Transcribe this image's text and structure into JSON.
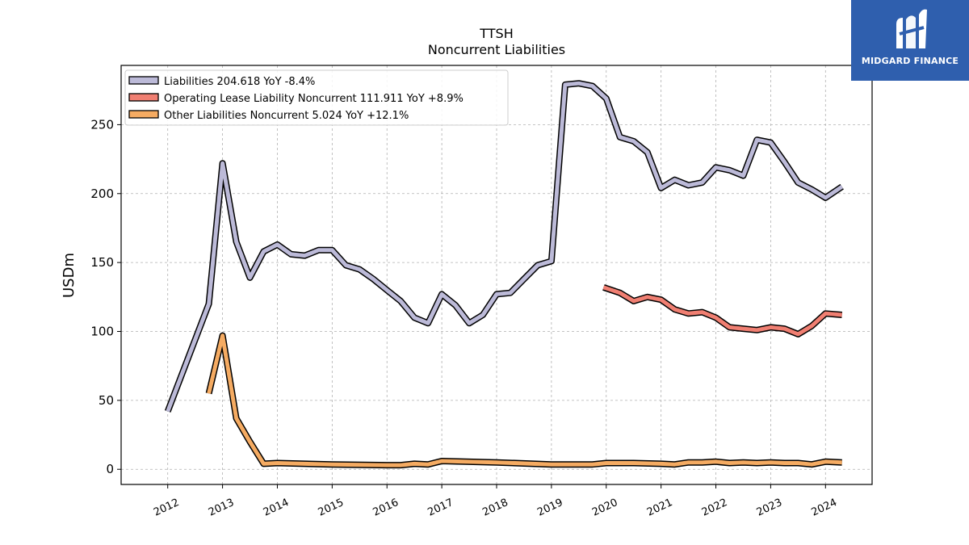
{
  "chart_data": {
    "type": "line",
    "title": "TTSH",
    "subtitle": "Noncurrent  Liabilities",
    "ylabel": "USDm",
    "xlabel": "",
    "ylim": [
      -11,
      293
    ],
    "yticks": [
      0,
      50,
      100,
      150,
      200,
      250
    ],
    "xlim": [
      2011.15,
      2024.85
    ],
    "xticks": [
      2012,
      2013,
      2014,
      2015,
      2016,
      2017,
      2018,
      2019,
      2020,
      2021,
      2022,
      2023,
      2024
    ],
    "grid": true,
    "legend_position": "top-left",
    "series": [
      {
        "name": "Liabilities",
        "legend": "Liabilities  204.618 YoY -8.4%",
        "color": "#bcbad8",
        "points": [
          [
            2012.0,
            42
          ],
          [
            2012.75,
            120
          ],
          [
            2013.0,
            222
          ],
          [
            2013.25,
            165
          ],
          [
            2013.5,
            139
          ],
          [
            2013.75,
            158
          ],
          [
            2014.0,
            163
          ],
          [
            2014.25,
            156
          ],
          [
            2014.5,
            155
          ],
          [
            2014.75,
            159
          ],
          [
            2015.0,
            159
          ],
          [
            2015.25,
            148
          ],
          [
            2015.5,
            145
          ],
          [
            2015.75,
            138
          ],
          [
            2016.0,
            130
          ],
          [
            2016.25,
            122
          ],
          [
            2016.5,
            110
          ],
          [
            2016.75,
            106
          ],
          [
            2017.0,
            127
          ],
          [
            2017.25,
            119
          ],
          [
            2017.5,
            106
          ],
          [
            2017.75,
            112
          ],
          [
            2018.0,
            127
          ],
          [
            2018.25,
            128
          ],
          [
            2018.5,
            138
          ],
          [
            2018.75,
            148
          ],
          [
            2019.0,
            151
          ],
          [
            2019.25,
            279
          ],
          [
            2019.5,
            280
          ],
          [
            2019.75,
            278
          ],
          [
            2020.0,
            269
          ],
          [
            2020.25,
            241
          ],
          [
            2020.5,
            238
          ],
          [
            2020.75,
            230
          ],
          [
            2021.0,
            204
          ],
          [
            2021.25,
            210
          ],
          [
            2021.5,
            206
          ],
          [
            2021.75,
            208
          ],
          [
            2022.0,
            219
          ],
          [
            2022.25,
            217
          ],
          [
            2022.5,
            213
          ],
          [
            2022.75,
            239
          ],
          [
            2023.0,
            237
          ],
          [
            2023.25,
            223
          ],
          [
            2023.5,
            208
          ],
          [
            2023.75,
            203
          ],
          [
            2024.0,
            197
          ],
          [
            2024.3,
            205
          ]
        ]
      },
      {
        "name": "Operating Lease Liability Noncurrent",
        "legend": "Operating Lease Liability Noncurrent  111.911 YoY +8.9%",
        "color": "#f07f72",
        "points": [
          [
            2019.95,
            132
          ],
          [
            2020.25,
            128
          ],
          [
            2020.5,
            122
          ],
          [
            2020.75,
            125
          ],
          [
            2021.0,
            123
          ],
          [
            2021.25,
            116
          ],
          [
            2021.5,
            113
          ],
          [
            2021.75,
            114
          ],
          [
            2022.0,
            110
          ],
          [
            2022.25,
            103
          ],
          [
            2022.5,
            102
          ],
          [
            2022.75,
            101
          ],
          [
            2023.0,
            103
          ],
          [
            2023.25,
            102
          ],
          [
            2023.5,
            98
          ],
          [
            2023.75,
            104
          ],
          [
            2024.0,
            113
          ],
          [
            2024.3,
            112
          ]
        ]
      },
      {
        "name": "Other Liabilities Noncurrent",
        "legend": "Other Liabilities Noncurrent  5.024 YoY +12.1%",
        "color": "#f5ab62",
        "points": [
          [
            2012.75,
            55
          ],
          [
            2013.0,
            97
          ],
          [
            2013.25,
            37
          ],
          [
            2013.5,
            20
          ],
          [
            2013.75,
            4
          ],
          [
            2014.0,
            4.5
          ],
          [
            2015.0,
            3.5
          ],
          [
            2016.0,
            3
          ],
          [
            2016.25,
            3
          ],
          [
            2016.5,
            4
          ],
          [
            2016.75,
            3.5
          ],
          [
            2017.0,
            6
          ],
          [
            2018.0,
            5
          ],
          [
            2019.0,
            3.5
          ],
          [
            2019.75,
            3.5
          ],
          [
            2020.0,
            4.5
          ],
          [
            2020.5,
            4.5
          ],
          [
            2021.0,
            4
          ],
          [
            2021.25,
            3.5
          ],
          [
            2021.5,
            5
          ],
          [
            2021.75,
            5
          ],
          [
            2022.0,
            5.5
          ],
          [
            2022.25,
            4.5
          ],
          [
            2022.5,
            5
          ],
          [
            2022.75,
            4.5
          ],
          [
            2023.0,
            5
          ],
          [
            2023.25,
            4.5
          ],
          [
            2023.5,
            4.5
          ],
          [
            2023.75,
            3.5
          ],
          [
            2024.0,
            5.5
          ],
          [
            2024.3,
            5
          ]
        ]
      }
    ]
  },
  "logo": {
    "text": "MIDGARD FINANCE",
    "color": "#2f5fae"
  }
}
